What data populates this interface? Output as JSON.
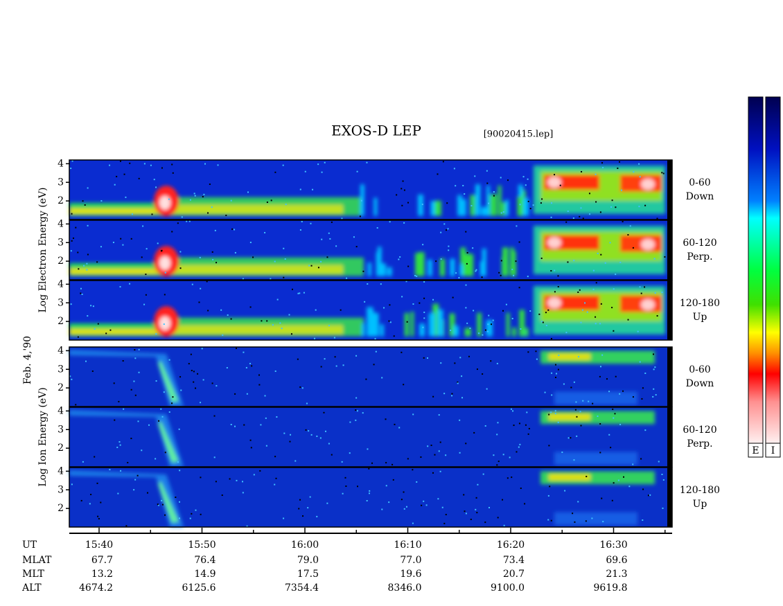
{
  "chart_data": {
    "type": "spectrogram",
    "title": "EXOS-D LEP",
    "subtitle": "[90020415.lep]",
    "date_label": "Feb. 4,'90",
    "ylim": [
      1,
      4.2
    ],
    "yticks": [
      2,
      3,
      4
    ],
    "groups": [
      {
        "ylabel": "Log Electron Energy (eV)",
        "species": "electron",
        "panels": [
          {
            "label": "0-60",
            "direction": "Down"
          },
          {
            "label": "60-120",
            "direction": "Perp."
          },
          {
            "label": "120-180",
            "direction": "Up"
          }
        ]
      },
      {
        "ylabel": "Log Ion Energy (eV)",
        "species": "ion",
        "panels": [
          {
            "label": "0-60",
            "direction": "Down"
          },
          {
            "label": "60-120",
            "direction": "Perp."
          },
          {
            "label": "120-180",
            "direction": "Up"
          }
        ]
      }
    ],
    "ephemeris": [
      {
        "name": "UT",
        "values": [
          "15:40",
          "15:50",
          "16:00",
          "16:10",
          "16:20",
          "16:30"
        ]
      },
      {
        "name": "MLAT",
        "values": [
          "67.7",
          "76.4",
          "79.0",
          "77.0",
          "73.4",
          "69.6"
        ]
      },
      {
        "name": "MLT",
        "values": [
          "13.2",
          "14.9",
          "17.5",
          "19.6",
          "20.7",
          "21.3"
        ]
      },
      {
        "name": "ALT",
        "values": [
          "4674.2",
          "6125.6",
          "7354.4",
          "8346.0",
          "9100.0",
          "9619.8"
        ]
      }
    ],
    "colorbar_labels": [
      "E",
      "I"
    ]
  }
}
